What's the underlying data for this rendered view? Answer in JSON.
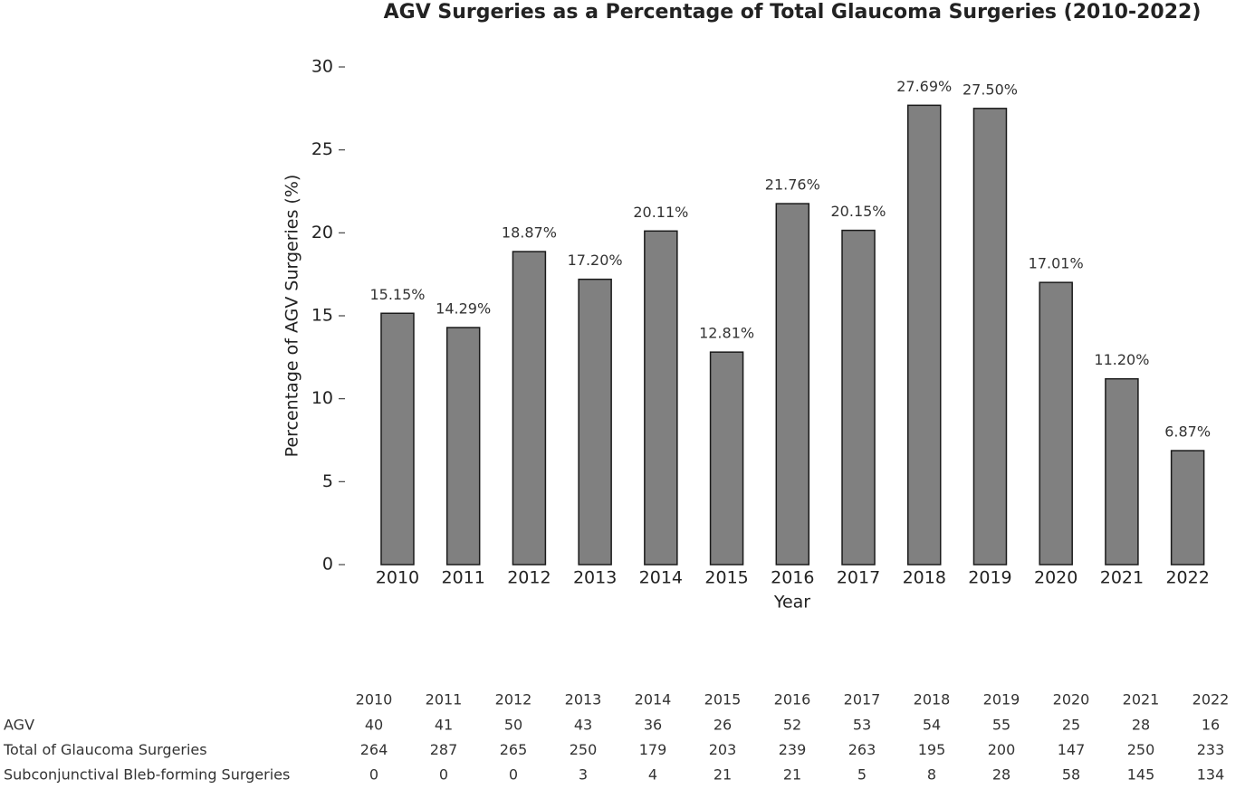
{
  "chart_data": {
    "type": "bar",
    "title": "AGV Surgeries as a Percentage of Total Glaucoma Surgeries (2010-2022)",
    "xlabel": "Year",
    "ylabel": "Percentage of AGV Surgeries (%)",
    "categories": [
      "2010",
      "2011",
      "2012",
      "2013",
      "2014",
      "2015",
      "2016",
      "2017",
      "2018",
      "2019",
      "2020",
      "2021",
      "2022"
    ],
    "values": [
      15.15,
      14.29,
      18.87,
      17.2,
      20.11,
      12.81,
      21.76,
      20.15,
      27.69,
      27.5,
      17.01,
      11.2,
      6.87
    ],
    "value_labels": [
      "15.15%",
      "14.29%",
      "18.87%",
      "17.20%",
      "20.11%",
      "12.81%",
      "21.76%",
      "20.15%",
      "27.69%",
      "27.50%",
      "17.01%",
      "11.20%",
      "6.87%"
    ],
    "color": "#808080",
    "ylim": [
      0,
      30
    ],
    "yticks": [
      0,
      5,
      10,
      15,
      20,
      25,
      30
    ],
    "grid": false
  },
  "table": {
    "rows": [
      {
        "label": "AGV",
        "values": [
          "40",
          "41",
          "50",
          "43",
          "36",
          "26",
          "52",
          "53",
          "54",
          "55",
          "25",
          "28",
          "16"
        ]
      },
      {
        "label": "Total of Glaucoma Surgeries",
        "values": [
          "264",
          "287",
          "265",
          "250",
          "179",
          "203",
          "239",
          "263",
          "195",
          "200",
          "147",
          "250",
          "233"
        ]
      },
      {
        "label": "Subconjunctival Bleb-forming Surgeries",
        "values": [
          "0",
          "0",
          "0",
          "3",
          "4",
          "21",
          "21",
          "5",
          "8",
          "28",
          "58",
          "145",
          "134"
        ]
      }
    ]
  }
}
